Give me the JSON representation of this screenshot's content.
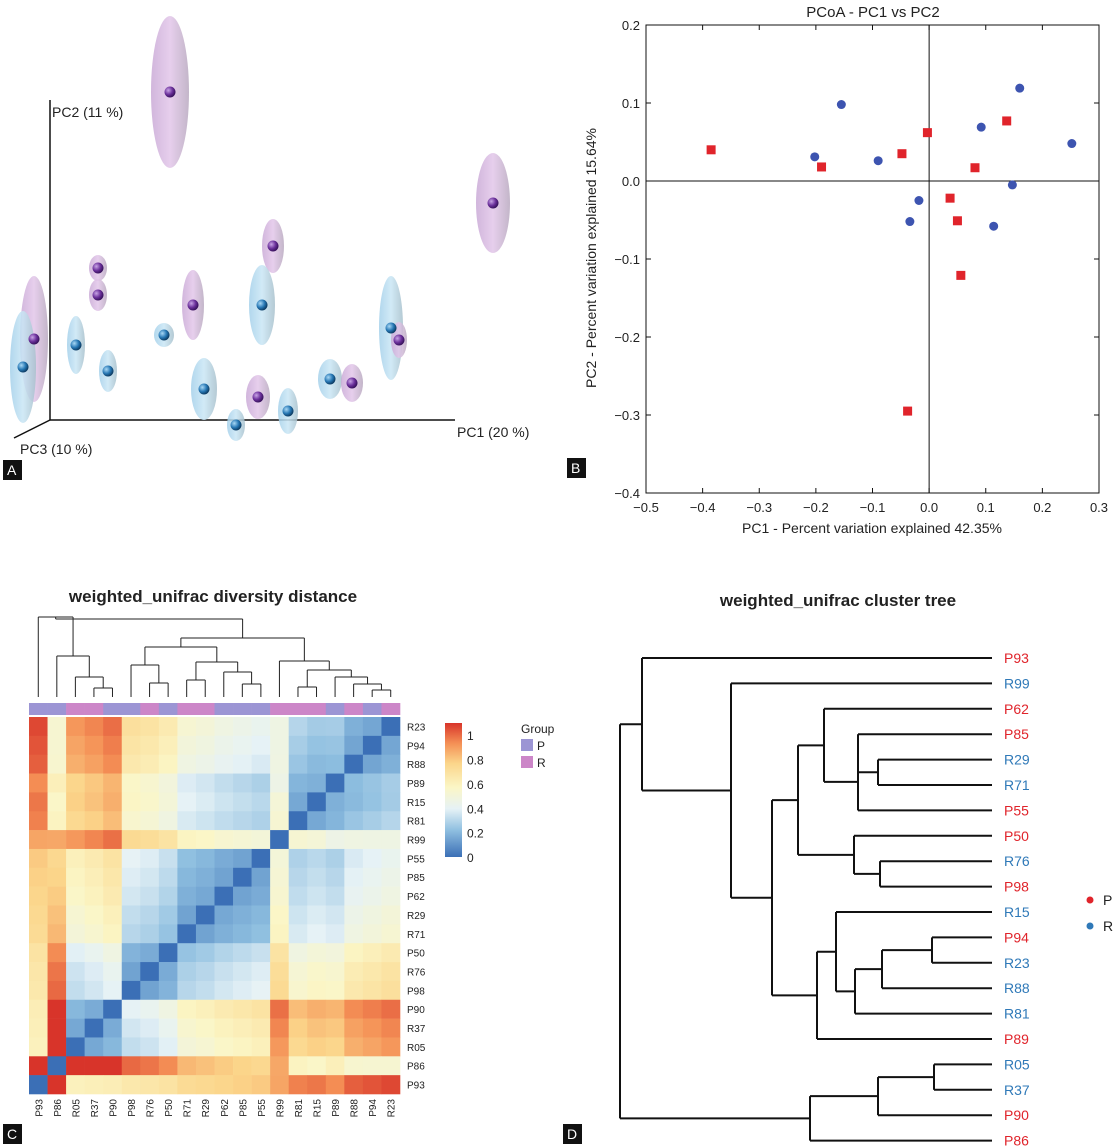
{
  "panels": {
    "A": "A",
    "B": "B",
    "C": "C",
    "D": "D"
  },
  "colors": {
    "P": "#e0242b",
    "R": "#3d54b0",
    "P_tree": "#e0242b",
    "R_tree": "#2f79b8",
    "P_group": "#9c95d4",
    "R_group": "#cc86c8",
    "sphere_purple": "#6a2f9a",
    "sphere_blue": "#2677b4",
    "ell_purple": "#d7b3df",
    "ell_blue": "#b7dbf0"
  },
  "chart_data": [
    {
      "type": "scatter",
      "panel": "A",
      "axes": [
        "PC1 (20 %)",
        "PC2 (11 %)",
        "PC3 (10 %)"
      ],
      "groups": [
        "P",
        "R"
      ],
      "points": [
        {
          "group": "P",
          "x": 170,
          "y": 92,
          "rx": 19,
          "ry": 76
        },
        {
          "group": "P",
          "x": 493,
          "y": 203,
          "rx": 17,
          "ry": 50
        },
        {
          "group": "P",
          "x": 273,
          "y": 246,
          "rx": 11,
          "ry": 27
        },
        {
          "group": "P",
          "x": 98,
          "y": 268,
          "rx": 9,
          "ry": 13
        },
        {
          "group": "P",
          "x": 98,
          "y": 295,
          "rx": 9,
          "ry": 16
        },
        {
          "group": "P",
          "x": 193,
          "y": 305,
          "rx": 11,
          "ry": 35
        },
        {
          "group": "R",
          "x": 262,
          "y": 305,
          "rx": 13,
          "ry": 40
        },
        {
          "group": "P",
          "x": 34,
          "y": 339,
          "rx": 14,
          "ry": 63
        },
        {
          "group": "R",
          "x": 23,
          "y": 367,
          "rx": 13,
          "ry": 56
        },
        {
          "group": "R",
          "x": 76,
          "y": 345,
          "rx": 9,
          "ry": 29
        },
        {
          "group": "R",
          "x": 164,
          "y": 335,
          "rx": 10,
          "ry": 12
        },
        {
          "group": "R",
          "x": 108,
          "y": 371,
          "rx": 9,
          "ry": 21
        },
        {
          "group": "R",
          "x": 391,
          "y": 328,
          "rx": 12,
          "ry": 52
        },
        {
          "group": "P",
          "x": 399,
          "y": 340,
          "rx": 8,
          "ry": 18
        },
        {
          "group": "R",
          "x": 204,
          "y": 389,
          "rx": 13,
          "ry": 31
        },
        {
          "group": "P",
          "x": 258,
          "y": 397,
          "rx": 12,
          "ry": 22
        },
        {
          "group": "R",
          "x": 288,
          "y": 411,
          "rx": 10,
          "ry": 23
        },
        {
          "group": "R",
          "x": 236,
          "y": 425,
          "rx": 9,
          "ry": 16
        },
        {
          "group": "R",
          "x": 330,
          "y": 379,
          "rx": 12,
          "ry": 20
        },
        {
          "group": "P",
          "x": 352,
          "y": 383,
          "rx": 11,
          "ry": 19
        }
      ]
    },
    {
      "type": "scatter",
      "panel": "B",
      "title": "PCoA - PC1 vs PC2",
      "xlabel": "PC1 - Percent variation explained 42.35%",
      "ylabel": "PC2 - Percent variation explained 15.64%",
      "xlim": [
        -0.5,
        0.3
      ],
      "ylim": [
        -0.4,
        0.2
      ],
      "xticks": [
        "−0.5",
        "−0.4",
        "−0.3",
        "−0.2",
        "−0.1",
        "0.0",
        "0.1",
        "0.2",
        "0.3"
      ],
      "yticks": [
        "0.2",
        "0.1",
        "0.0",
        "−0.1",
        "−0.2",
        "−0.3",
        "−0.4"
      ],
      "series": [
        {
          "group": "P",
          "marker": "square",
          "points": [
            [
              -0.385,
              0.04
            ],
            [
              -0.19,
              0.018
            ],
            [
              -0.048,
              0.035
            ],
            [
              -0.003,
              0.062
            ],
            [
              0.137,
              0.077
            ],
            [
              0.081,
              0.017
            ],
            [
              0.037,
              -0.022
            ],
            [
              0.05,
              -0.051
            ],
            [
              0.056,
              -0.121
            ],
            [
              -0.038,
              -0.295
            ]
          ]
        },
        {
          "group": "R",
          "marker": "circle",
          "points": [
            [
              -0.155,
              0.098
            ],
            [
              -0.202,
              0.031
            ],
            [
              -0.09,
              0.026
            ],
            [
              0.16,
              0.119
            ],
            [
              0.092,
              0.069
            ],
            [
              0.252,
              0.048
            ],
            [
              0.147,
              -0.005
            ],
            [
              -0.018,
              -0.025
            ],
            [
              -0.034,
              -0.052
            ],
            [
              0.114,
              -0.058
            ]
          ]
        }
      ]
    },
    {
      "type": "heatmap",
      "panel": "C",
      "title": "weighted_unifrac diversity distance",
      "columns": [
        "P93",
        "P86",
        "R05",
        "R37",
        "P90",
        "P98",
        "R76",
        "P50",
        "R71",
        "R29",
        "P62",
        "P85",
        "P55",
        "R99",
        "R81",
        "R15",
        "P89",
        "R88",
        "P94",
        "R23"
      ],
      "rows": [
        "R23",
        "P94",
        "R88",
        "P89",
        "R15",
        "R81",
        "R99",
        "P55",
        "P85",
        "P62",
        "R29",
        "R71",
        "P50",
        "R76",
        "P98",
        "P90",
        "R37",
        "R05",
        "P86",
        "P93"
      ],
      "legend_title": "Group",
      "legend_groups": [
        "P",
        "R"
      ],
      "colorbar_ticks": [
        "1",
        "0.8",
        "0.6",
        "0.4",
        "0.2",
        "0"
      ],
      "colorbar_range": [
        0,
        1.1
      ]
    },
    {
      "type": "table",
      "panel": "D",
      "title": "weighted_unifrac cluster tree",
      "leaves": [
        {
          "label": "P93",
          "group": "P"
        },
        {
          "label": "R99",
          "group": "R"
        },
        {
          "label": "P62",
          "group": "P"
        },
        {
          "label": "P85",
          "group": "P"
        },
        {
          "label": "R29",
          "group": "R"
        },
        {
          "label": "R71",
          "group": "R"
        },
        {
          "label": "P55",
          "group": "P"
        },
        {
          "label": "P50",
          "group": "P"
        },
        {
          "label": "R76",
          "group": "R"
        },
        {
          "label": "P98",
          "group": "P"
        },
        {
          "label": "R15",
          "group": "R"
        },
        {
          "label": "P94",
          "group": "P"
        },
        {
          "label": "R23",
          "group": "R"
        },
        {
          "label": "R88",
          "group": "R"
        },
        {
          "label": "R81",
          "group": "R"
        },
        {
          "label": "P89",
          "group": "P"
        },
        {
          "label": "R05",
          "group": "R"
        },
        {
          "label": "R37",
          "group": "R"
        },
        {
          "label": "P90",
          "group": "P"
        },
        {
          "label": "P86",
          "group": "P"
        }
      ],
      "legend": [
        "P",
        "R"
      ]
    }
  ]
}
